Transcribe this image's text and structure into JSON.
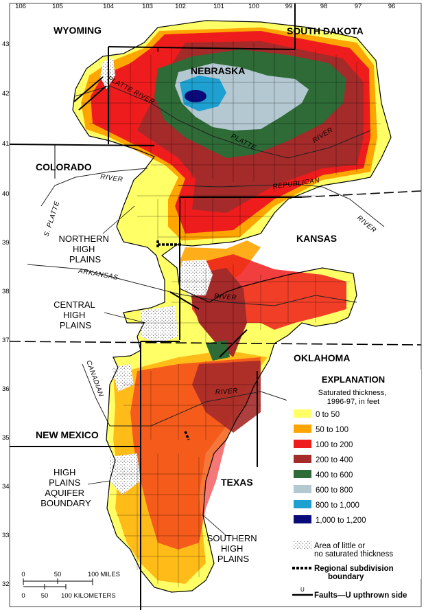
{
  "longitudes": [
    "106",
    "105",
    "104",
    "103",
    "102",
    "101",
    "100",
    "99",
    "98",
    "97",
    "96"
  ],
  "latitudes": [
    "43",
    "42",
    "41",
    "40",
    "39",
    "38",
    "37",
    "36",
    "35",
    "34",
    "33",
    "32"
  ],
  "states": {
    "wyoming": "WYOMING",
    "south_dakota": "SOUTH DAKOTA",
    "nebraska": "NEBRASKA",
    "colorado": "COLORADO",
    "kansas": "KANSAS",
    "oklahoma": "OKLAHOMA",
    "new_mexico": "NEW MEXICO",
    "texas": "TEXAS"
  },
  "regions": {
    "northern": [
      "NORTHERN",
      "HIGH",
      "PLAINS"
    ],
    "central": [
      "CENTRAL",
      "HIGH",
      "PLAINS"
    ],
    "southern": [
      "SOUTHERN",
      "HIGH",
      "PLAINS"
    ],
    "boundary": [
      "HIGH",
      "PLAINS",
      "AQUIFER",
      "BOUNDARY"
    ]
  },
  "rivers": {
    "north_platte": "PLATTE RIVER",
    "platte": "PLATTE",
    "platte_river": "RIVER",
    "republican": "REPUBLICAN",
    "s_platte": "S. PLATTE",
    "co_river": "RIVER",
    "ks_river": "RIVER",
    "arkansas": "ARKANSAS",
    "ark_river": "RIVER",
    "canadian": "CANADIAN",
    "canadian_river": "RIVER"
  },
  "legend": {
    "title": "EXPLANATION",
    "subtitle_lines": [
      "Saturated thickness,",
      "1996-97, in feet"
    ],
    "items": [
      {
        "label": "0 to 50",
        "color": "#ffff66"
      },
      {
        "label": "50 to 100",
        "color": "#ffa500"
      },
      {
        "label": "100 to 200",
        "color": "#ee1c1c"
      },
      {
        "label": "200 to 400",
        "color": "#a52a2a"
      },
      {
        "label": "400 to 600",
        "color": "#2e6b36"
      },
      {
        "label": "600 to 800",
        "color": "#b4c8d2"
      },
      {
        "label": "800 to 1,000",
        "color": "#1ea0d0"
      },
      {
        "label": "1,000 to 1,200",
        "color": "#0a0a78"
      }
    ],
    "little_thickness": [
      "Area of little or",
      "no saturated thickness"
    ],
    "regional_subdivision": [
      "Regional subdivision",
      "boundary"
    ],
    "faults": "Faults—U upthrown side",
    "fault_symbol": "U"
  },
  "scale": {
    "miles_ticks": [
      "0",
      "50",
      "100 MILES"
    ],
    "km_ticks": [
      "0",
      "50",
      "100 KILOMETERS"
    ]
  }
}
